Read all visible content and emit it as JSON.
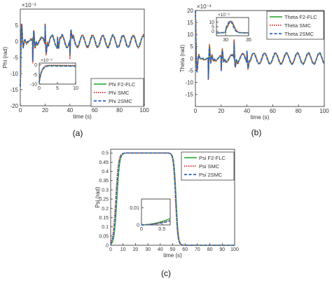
{
  "colors": {
    "flc": "#3cb043",
    "smc": "#d8281f",
    "smc2": "#2a62c9",
    "axis": "#262626"
  },
  "chart_data": [
    {
      "id": "a",
      "type": "line",
      "caption": "(a)",
      "ylabel": "Phi (rad)",
      "xlabel": "time (s)",
      "exponent_label": "×10⁻³",
      "xlim": [
        0,
        100
      ],
      "ylim": [
        -20,
        10
      ],
      "xticks": [
        0,
        20,
        40,
        60,
        80,
        100
      ],
      "yticks": [
        -20,
        -15,
        -10,
        -5,
        0,
        5
      ],
      "legend": {
        "position": "bottom-right",
        "entries": [
          "Phi F2-FLC",
          "Phi SMC",
          "Phi 2SMC"
        ]
      },
      "inset": {
        "xlim": [
          0,
          10
        ],
        "ylim": [
          -10,
          1
        ],
        "xticks": [
          0,
          5,
          10
        ],
        "yticks": [
          -10,
          -5,
          0
        ],
        "exponent_label": "×10⁻³",
        "position": "lower-middle"
      }
    },
    {
      "id": "b",
      "type": "line",
      "caption": "(b)",
      "ylabel": "Theta (rad)",
      "xlabel": "time (s)",
      "exponent_label": "×10⁻³",
      "xlim": [
        0,
        100
      ],
      "ylim": [
        -20,
        20
      ],
      "xticks": [
        0,
        20,
        40,
        60,
        80,
        100
      ],
      "yticks": [
        -15,
        -10,
        -5,
        0,
        5,
        10,
        15,
        20
      ],
      "legend": {
        "position": "top-right",
        "entries": [
          "Theta F2-FLC",
          "Theta SMC",
          "Theta 2SMC"
        ]
      },
      "inset": {
        "xlim": [
          28,
          35
        ],
        "ylim": [
          -5,
          15
        ],
        "xticks": [
          30,
          35
        ],
        "yticks": [
          0,
          5,
          10
        ],
        "exponent_label": "×10⁻³",
        "position": "upper-middle"
      }
    },
    {
      "id": "c",
      "type": "line",
      "caption": "(c)",
      "ylabel": "Psi (rad)",
      "xlabel": "time (s)",
      "xlim": [
        0,
        100
      ],
      "ylim": [
        0,
        0.52
      ],
      "xticks": [
        0,
        10,
        20,
        30,
        40,
        50,
        60,
        70,
        80,
        90,
        100
      ],
      "yticks": [
        0,
        0.05,
        0.1,
        0.15,
        0.2,
        0.25,
        0.3,
        0.35,
        0.4,
        0.45,
        0.5
      ],
      "legend": {
        "position": "top-right",
        "entries": [
          "Psi F2-FLC",
          "Psi SMC",
          "Psi 2SMC"
        ]
      },
      "inset": {
        "xlim": [
          0,
          0.7
        ],
        "ylim": [
          0,
          0.015
        ],
        "xticks": [
          0,
          0.5
        ],
        "yticks": [
          0,
          0.01
        ],
        "position": "lower-middle"
      }
    }
  ]
}
